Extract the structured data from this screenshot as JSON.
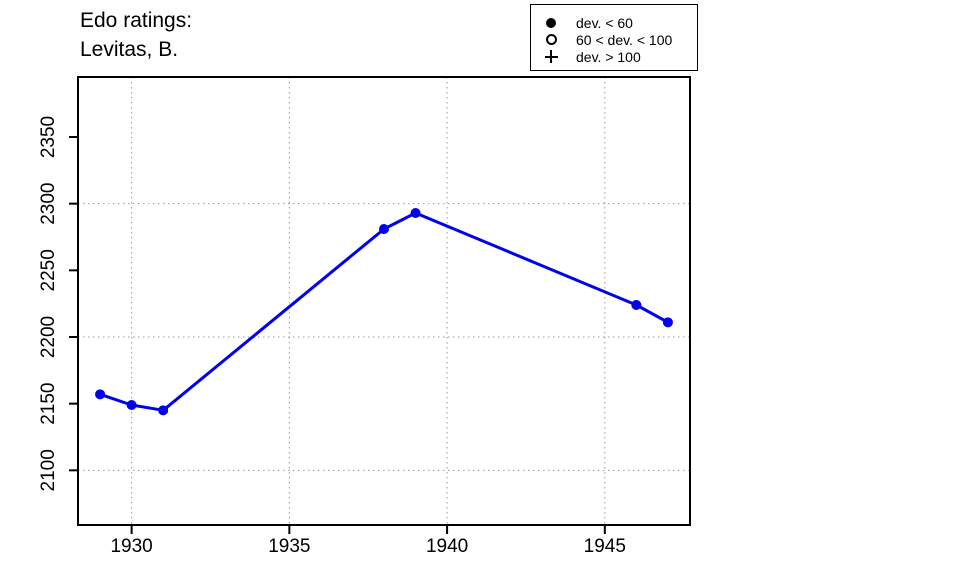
{
  "title": {
    "line1": "Edo ratings:",
    "line2": "Levitas, B."
  },
  "legend": {
    "items": [
      {
        "symbol": "filled-circle",
        "label": "dev. < 60"
      },
      {
        "symbol": "open-circle",
        "label": "60 < dev. < 100"
      },
      {
        "symbol": "plus",
        "label": "dev. > 100"
      }
    ]
  },
  "chart_data": {
    "type": "line",
    "title": "Edo ratings: Levitas, B.",
    "series": [
      {
        "name": "Edo rating (dev. < 60)",
        "marker": "filled-circle",
        "x": [
          1929,
          1930,
          1931,
          1938,
          1939,
          1946,
          1947
        ],
        "y": [
          2157,
          2149,
          2145,
          2281,
          2293,
          2224,
          2211
        ]
      }
    ],
    "xlabel": "",
    "ylabel": "",
    "xlim": [
      1928.3,
      1947.7
    ],
    "ylim": [
      2059,
      2395
    ],
    "xticks": [
      1930,
      1935,
      1940,
      1945
    ],
    "yticks": [
      2100,
      2150,
      2200,
      2250,
      2300,
      2350
    ],
    "x_gridlines": [
      1930,
      1935,
      1940,
      1945
    ],
    "y_gridlines": [
      2100,
      2200,
      2300
    ],
    "grid_style": "dotted",
    "line_color": "#0000EE",
    "marker_color": "#0000EE",
    "grid_color": "#999999",
    "axis_color": "#000000",
    "legend_position": "top-right-above-plot"
  }
}
